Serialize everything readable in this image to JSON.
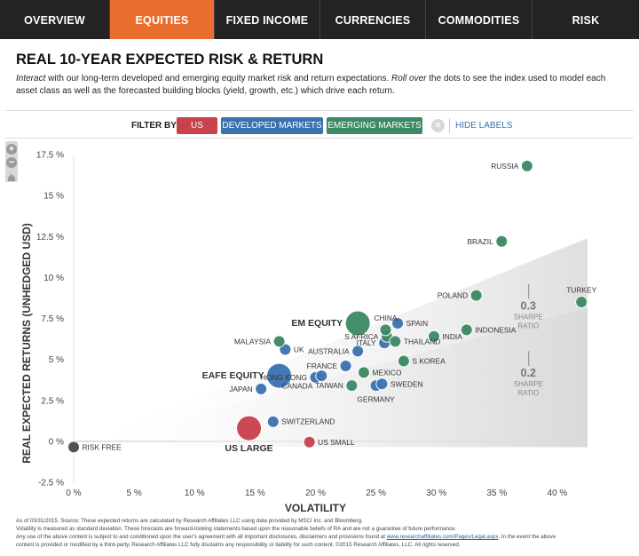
{
  "tabs": [
    "OVERVIEW",
    "EQUITIES",
    "FIXED INCOME",
    "CURRENCIES",
    "COMMODITIES",
    "RISK"
  ],
  "active_tab": "EQUITIES",
  "title": "REAL 10-YEAR EXPECTED RISK & RETURN",
  "intro": {
    "interact": "Interact",
    "text1": " with our long-term developed and emerging equity market risk and return expectations. ",
    "rollover": "Roll over",
    "text2": " the dots to see the index used to model each asset class as well as the forecasted building blocks (yield, growth, etc.) which drive each return."
  },
  "filter": {
    "label": "FILTER BY:",
    "us": "US",
    "developed": "DEVELOPED MARKETS",
    "emerging": "EMERGING MARKETS",
    "clear": "×",
    "hide_labels": "HIDE LABELS"
  },
  "zoom": {
    "plus": "+",
    "minus": "−"
  },
  "colors": {
    "us": "#c8414b",
    "developed": "#3a72b0",
    "emerging": "#3b8a63",
    "riskfree": "#4a4a4a",
    "accent": "#e96d2d"
  },
  "chart_data": {
    "type": "scatter",
    "xlabel": "VOLATILITY",
    "ylabel": "REAL EXPECTED RETURNS (UNHEDGED USD)",
    "xlim": [
      0,
      42.5
    ],
    "ylim": [
      -2.5,
      17.5
    ],
    "xticks": [
      0,
      5,
      10,
      15,
      20,
      25,
      30,
      35,
      40
    ],
    "xtick_labels": [
      "0 %",
      "5 %",
      "10 %",
      "15 %",
      "20 %",
      "25 %",
      "30 %",
      "35 %",
      "40 %"
    ],
    "yticks": [
      -2.5,
      0,
      2.5,
      5,
      7.5,
      10,
      12.5,
      15,
      17.5
    ],
    "ytick_labels": [
      "-2.5 %",
      "0 %",
      "2.5 %",
      "5 %",
      "7.5 %",
      "10 %",
      "12.5 %",
      "15 %",
      "17.5 %"
    ],
    "sharpe_lines": [
      {
        "sharpe": 0.3,
        "value_label": "0.3",
        "caption_1": "SHARPE",
        "caption_2": "RATIO"
      },
      {
        "sharpe": 0.2,
        "value_label": "0.2",
        "caption_1": "SHARPE",
        "caption_2": "RATIO"
      }
    ],
    "risk_free_rate": -0.35,
    "points": [
      {
        "name": "RISK FREE",
        "x": 0.0,
        "y": -0.35,
        "group": "riskfree",
        "size": "small",
        "label_pos": "right",
        "bold": false
      },
      {
        "name": "US LARGE",
        "x": 14.5,
        "y": 0.8,
        "group": "us",
        "size": "large",
        "label_pos": "below",
        "bold": true
      },
      {
        "name": "US SMALL",
        "x": 19.5,
        "y": -0.05,
        "group": "us",
        "size": "small",
        "label_pos": "right",
        "bold": false
      },
      {
        "name": "EAFE EQUITY",
        "x": 17.0,
        "y": 4.0,
        "group": "developed",
        "size": "large",
        "label_pos": "left",
        "bold": true
      },
      {
        "name": "SWITZERLAND",
        "x": 16.5,
        "y": 1.2,
        "group": "developed",
        "size": "small",
        "label_pos": "right",
        "bold": false
      },
      {
        "name": "JAPAN",
        "x": 15.5,
        "y": 3.2,
        "group": "developed",
        "size": "small",
        "label_pos": "left",
        "bold": false
      },
      {
        "name": "UK",
        "x": 17.5,
        "y": 5.6,
        "group": "developed",
        "size": "small",
        "label_pos": "right",
        "bold": false
      },
      {
        "name": "FRANCE",
        "x": 22.5,
        "y": 4.6,
        "group": "developed",
        "size": "small",
        "label_pos": "left",
        "bold": false
      },
      {
        "name": "AUSTRALIA",
        "x": 23.5,
        "y": 5.5,
        "group": "developed",
        "size": "small",
        "label_pos": "left",
        "bold": false
      },
      {
        "name": "HONG KONG",
        "x": 20.0,
        "y": 3.9,
        "group": "developed",
        "size": "small",
        "label_pos": "left",
        "bold": false
      },
      {
        "name": "CANADA",
        "x": 20.5,
        "y": 4.0,
        "group": "developed",
        "size": "small",
        "label_pos": "belowleft",
        "bold": false
      },
      {
        "name": "GERMANY",
        "x": 25.0,
        "y": 3.4,
        "group": "developed",
        "size": "small",
        "label_pos": "belowcenter",
        "bold": false
      },
      {
        "name": "SWEDEN",
        "x": 25.5,
        "y": 3.5,
        "group": "developed",
        "size": "small",
        "label_pos": "right",
        "bold": false
      },
      {
        "name": "ITALY",
        "x": 25.7,
        "y": 6.0,
        "group": "developed",
        "size": "small",
        "label_pos": "left",
        "bold": false
      },
      {
        "name": "SPAIN",
        "x": 26.8,
        "y": 7.2,
        "group": "developed",
        "size": "small",
        "label_pos": "right",
        "bold": false
      },
      {
        "name": "EM EQUITY",
        "x": 23.5,
        "y": 7.2,
        "group": "emerging",
        "size": "large",
        "label_pos": "left",
        "bold": true
      },
      {
        "name": "MALAYSIA",
        "x": 17.0,
        "y": 6.1,
        "group": "emerging",
        "size": "small",
        "label_pos": "left",
        "bold": false
      },
      {
        "name": "TAIWAN",
        "x": 23.0,
        "y": 3.4,
        "group": "emerging",
        "size": "small",
        "label_pos": "left",
        "bold": false
      },
      {
        "name": "MEXICO",
        "x": 24.0,
        "y": 4.2,
        "group": "emerging",
        "size": "small",
        "label_pos": "right",
        "bold": false
      },
      {
        "name": "S KOREA",
        "x": 27.3,
        "y": 4.9,
        "group": "emerging",
        "size": "small",
        "label_pos": "right",
        "bold": false
      },
      {
        "name": "S AFRICA",
        "x": 25.9,
        "y": 6.4,
        "group": "emerging",
        "size": "small",
        "label_pos": "left",
        "bold": false
      },
      {
        "name": "CHINA",
        "x": 25.8,
        "y": 6.8,
        "group": "emerging",
        "size": "small",
        "label_pos": "above",
        "bold": false
      },
      {
        "name": "THAILAND",
        "x": 26.6,
        "y": 6.1,
        "group": "emerging",
        "size": "small",
        "label_pos": "right",
        "bold": false
      },
      {
        "name": "INDIA",
        "x": 29.8,
        "y": 6.4,
        "group": "emerging",
        "size": "small",
        "label_pos": "right",
        "bold": false
      },
      {
        "name": "INDONESIA",
        "x": 32.5,
        "y": 6.8,
        "group": "emerging",
        "size": "small",
        "label_pos": "right",
        "bold": false
      },
      {
        "name": "POLAND",
        "x": 33.3,
        "y": 8.9,
        "group": "emerging",
        "size": "small",
        "label_pos": "left",
        "bold": false
      },
      {
        "name": "BRAZIL",
        "x": 35.4,
        "y": 12.2,
        "group": "emerging",
        "size": "small",
        "label_pos": "left",
        "bold": false
      },
      {
        "name": "RUSSIA",
        "x": 37.5,
        "y": 16.8,
        "group": "emerging",
        "size": "small",
        "label_pos": "left",
        "bold": false
      },
      {
        "name": "TURKEY",
        "x": 42.0,
        "y": 8.5,
        "group": "emerging",
        "size": "small",
        "label_pos": "above",
        "bold": false
      }
    ]
  },
  "footer": {
    "line1": "As of 03/31/2015. Source: These expected returns are calculated by Research Affiliates LLC using data provided by MSCI Inc. and Bloomberg.",
    "line2": "Volatility is measured as standard deviation. These forecasts are forward-looking statements based upon the reasonable beliefs of RA and are not a guarantee of future performance.",
    "line3a": "Any use of the above content is subject to and conditioned upon the user's agreement with all important disclosures, disclaimers and provisions found at ",
    "link": "www.researchaffiliates.com/Pages/Legal.aspx",
    "line3b": ". In the event the above",
    "line4": "content is provided or modified by a third-party, Research Affiliates LLC fully disclaims any responsibility or liability for such content. ©2015 Research Affiliates, LLC. All rights reserved."
  }
}
